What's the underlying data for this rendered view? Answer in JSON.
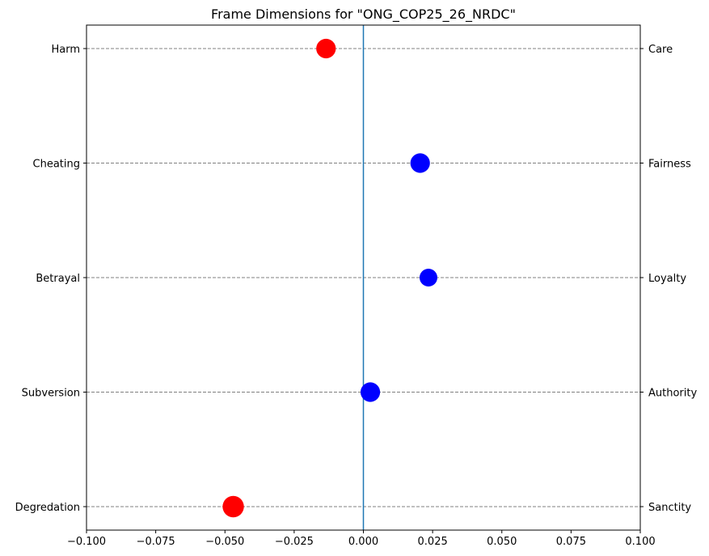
{
  "chart_data": {
    "type": "scatter",
    "title": "Frame Dimensions for \"ONG_COP25_26_NRDC\"",
    "xlim": [
      -0.1,
      0.1
    ],
    "x_ticks": [
      -0.1,
      -0.075,
      -0.05,
      -0.025,
      0.0,
      0.025,
      0.05,
      0.075,
      0.1
    ],
    "x_tick_labels": [
      "−0.100",
      "−0.075",
      "−0.050",
      "−0.025",
      "0.000",
      "0.025",
      "0.050",
      "0.075",
      "0.100"
    ],
    "left_labels": [
      "Harm",
      "Cheating",
      "Betrayal",
      "Subversion",
      "Degredation"
    ],
    "right_labels": [
      "Care",
      "Fairness",
      "Loyalty",
      "Authority",
      "Sanctity"
    ],
    "points": [
      {
        "left": "Harm",
        "right": "Care",
        "value": -0.0135,
        "color": "#ff0000",
        "size": 1.1
      },
      {
        "left": "Cheating",
        "right": "Fairness",
        "value": 0.0205,
        "color": "#0000ff",
        "size": 1.1
      },
      {
        "left": "Betrayal",
        "right": "Loyalty",
        "value": 0.0235,
        "color": "#0000ff",
        "size": 1.0
      },
      {
        "left": "Subversion",
        "right": "Authority",
        "value": 0.0025,
        "color": "#0000ff",
        "size": 1.1
      },
      {
        "left": "Degredation",
        "right": "Sanctity",
        "value": -0.047,
        "color": "#ff0000",
        "size": 1.2
      }
    ],
    "zero_line_color": "#1f77b4",
    "grid": "horizontal dashed",
    "legend": "none"
  }
}
